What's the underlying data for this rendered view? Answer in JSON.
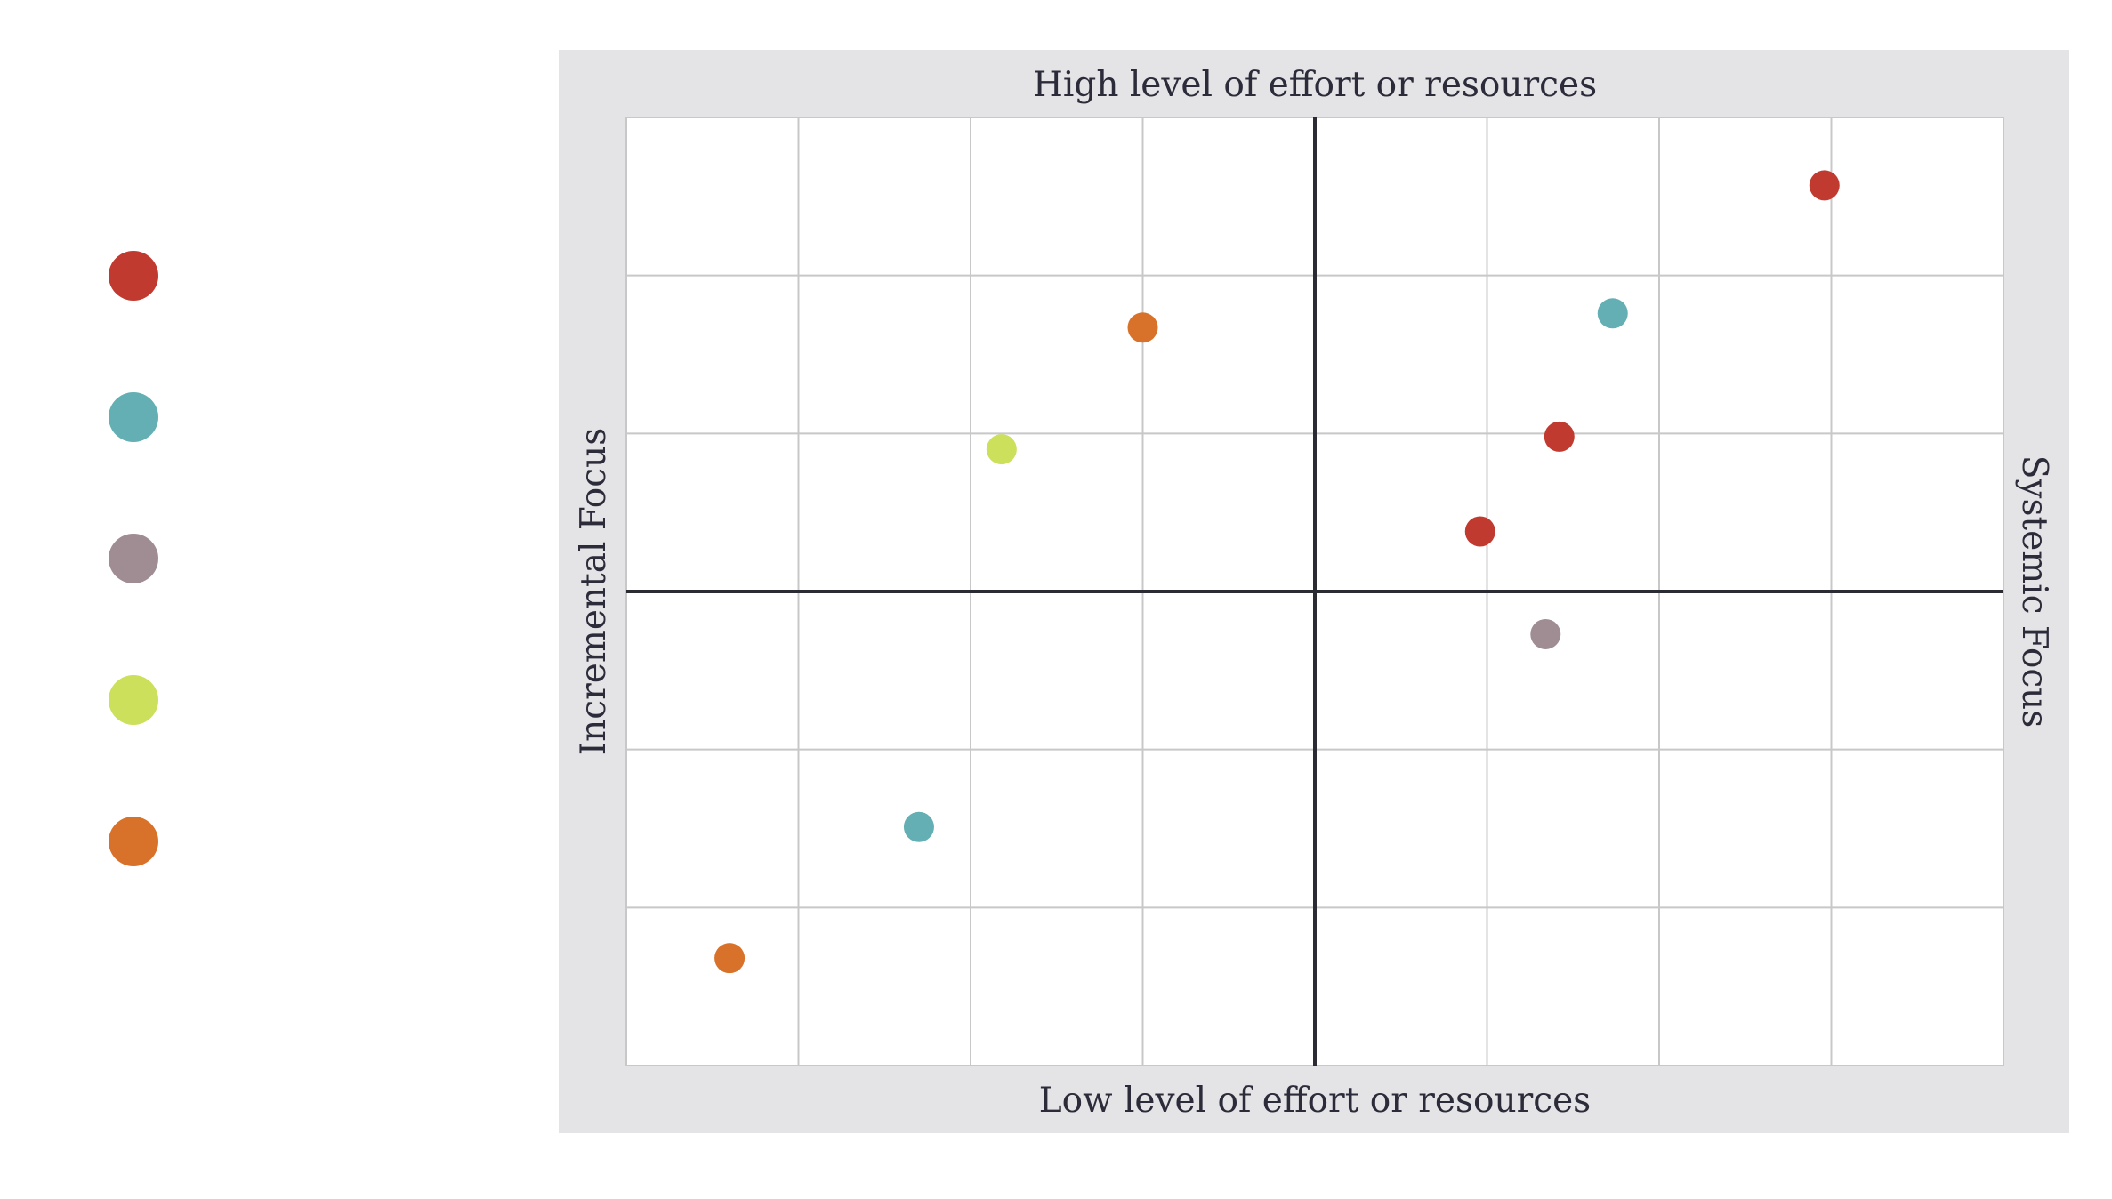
{
  "chart_data": {
    "type": "scatter",
    "title": "",
    "top_label": "High level of effort or resources",
    "bottom_label": "Low level of effort or resources",
    "left_label": "Incremental Focus",
    "right_label": "Systemic Focus",
    "xlim": [
      -4,
      4
    ],
    "ylim": [
      -3,
      3
    ],
    "grid": true,
    "colors": {
      "red": "#c13a30",
      "teal": "#63afb3",
      "mauve": "#a08c93",
      "lime": "#cce05c",
      "orange": "#d8722a",
      "panel": "#e4e4e6",
      "gridline": "#c8c8c8",
      "axis": "#2b2b33"
    },
    "legend": [
      {
        "color": "#c13a30"
      },
      {
        "color": "#63afb3"
      },
      {
        "color": "#a08c93"
      },
      {
        "color": "#cce05c"
      },
      {
        "color": "#d8722a"
      }
    ],
    "points": [
      {
        "x": 2.96,
        "y": 2.57,
        "color": "#c13a30"
      },
      {
        "x": 1.73,
        "y": 1.76,
        "color": "#63afb3"
      },
      {
        "x": 1.42,
        "y": 0.98,
        "color": "#c13a30"
      },
      {
        "x": 0.96,
        "y": 0.38,
        "color": "#c13a30"
      },
      {
        "x": 1.34,
        "y": -0.27,
        "color": "#a08c93"
      },
      {
        "x": -1.0,
        "y": 1.67,
        "color": "#d8722a"
      },
      {
        "x": -1.82,
        "y": 0.9,
        "color": "#cce05c"
      },
      {
        "x": -2.3,
        "y": -1.49,
        "color": "#63afb3"
      },
      {
        "x": -3.4,
        "y": -2.32,
        "color": "#d8722a"
      }
    ]
  }
}
